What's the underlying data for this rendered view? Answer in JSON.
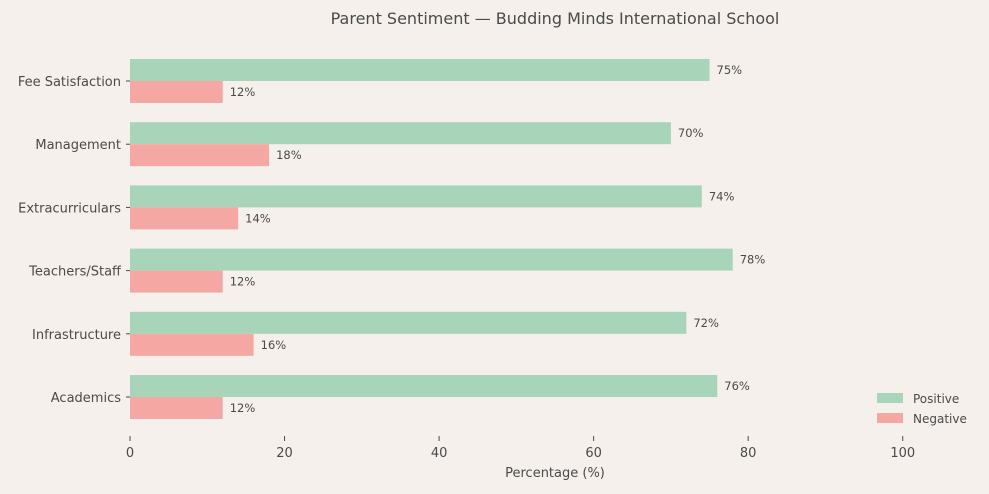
{
  "chart_data": {
    "type": "bar",
    "orientation": "horizontal",
    "title": "Parent Sentiment — Budding Minds International School",
    "xlabel": "Percentage (%)",
    "ylabel": "",
    "categories": [
      "Academics",
      "Infrastructure",
      "Teachers/Staff",
      "Extracurriculars",
      "Management",
      "Fee Satisfaction"
    ],
    "series": [
      {
        "name": "Positive",
        "color": "#a8d5b9",
        "values": [
          76,
          72,
          78,
          74,
          70,
          75
        ]
      },
      {
        "name": "Negative",
        "color": "#f5a8a3",
        "values": [
          12,
          16,
          12,
          14,
          18,
          12
        ]
      }
    ],
    "xlim": [
      0,
      110
    ],
    "xticks": [
      0,
      20,
      40,
      60,
      80,
      100
    ],
    "value_label_suffix": "%",
    "grid": false,
    "legend": "bottom-right"
  }
}
